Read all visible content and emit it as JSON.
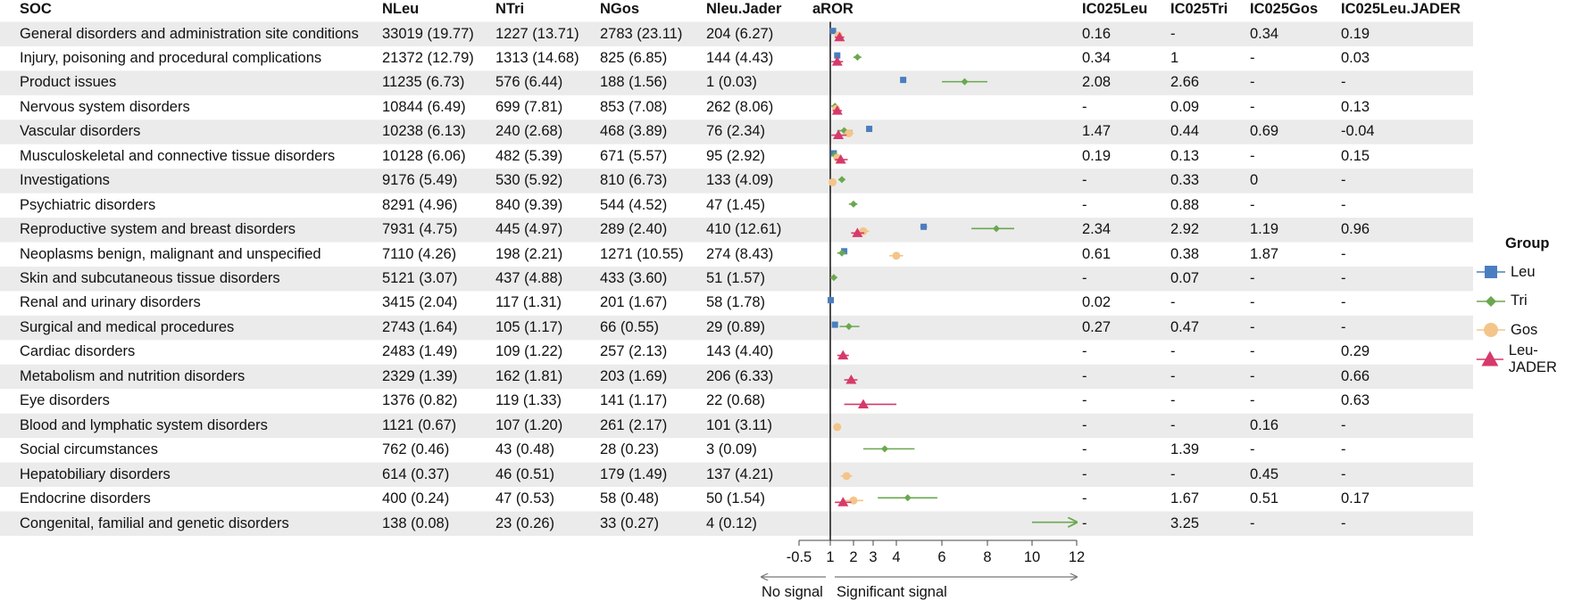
{
  "headers": {
    "soc": "SOC",
    "nleu": "NLeu",
    "ntri": "NTri",
    "ngos": "NGos",
    "njader": "Nleu.Jader",
    "aror": "aROR",
    "ic_leu": "IC025Leu",
    "ic_tri": "IC025Tri",
    "ic_gos": "IC025Gos",
    "ic_jader": "IC025Leu.JADER"
  },
  "rows": [
    {
      "soc": "General disorders and administration site conditions",
      "nleu": "33019 (19.77)",
      "ntri": "1227 (13.71)",
      "ngos": "2783 (23.11)",
      "njader": "204 (6.27)",
      "ic_leu": "0.16",
      "ic_tri": "-",
      "ic_gos": "0.34",
      "ic_jader": "0.19"
    },
    {
      "soc": "Injury, poisoning and procedural complications",
      "nleu": "21372 (12.79)",
      "ntri": "1313 (14.68)",
      "ngos": "825 (6.85)",
      "njader": "144 (4.43)",
      "ic_leu": "0.34",
      "ic_tri": "1",
      "ic_gos": "-",
      "ic_jader": "0.03"
    },
    {
      "soc": "Product issues",
      "nleu": "11235 (6.73)",
      "ntri": "576 (6.44)",
      "ngos": "188 (1.56)",
      "njader": "1 (0.03)",
      "ic_leu": "2.08",
      "ic_tri": "2.66",
      "ic_gos": "-",
      "ic_jader": "-"
    },
    {
      "soc": "Nervous system disorders",
      "nleu": "10844 (6.49)",
      "ntri": "699 (7.81)",
      "ngos": "853 (7.08)",
      "njader": "262 (8.06)",
      "ic_leu": "-",
      "ic_tri": "0.09",
      "ic_gos": "-",
      "ic_jader": "0.13"
    },
    {
      "soc": "Vascular disorders",
      "nleu": "10238 (6.13)",
      "ntri": "240 (2.68)",
      "ngos": "468 (3.89)",
      "njader": "76 (2.34)",
      "ic_leu": "1.47",
      "ic_tri": "0.44",
      "ic_gos": "0.69",
      "ic_jader": "-0.04"
    },
    {
      "soc": "Musculoskeletal and connective tissue disorders",
      "nleu": "10128 (6.06)",
      "ntri": "482 (5.39)",
      "ngos": "671 (5.57)",
      "njader": "95 (2.92)",
      "ic_leu": "0.19",
      "ic_tri": "0.13",
      "ic_gos": "-",
      "ic_jader": "0.15"
    },
    {
      "soc": "Investigations",
      "nleu": "9176 (5.49)",
      "ntri": "530 (5.92)",
      "ngos": "810 (6.73)",
      "njader": "133 (4.09)",
      "ic_leu": "-",
      "ic_tri": "0.33",
      "ic_gos": "0",
      "ic_jader": "-"
    },
    {
      "soc": "Psychiatric disorders",
      "nleu": "8291 (4.96)",
      "ntri": "840 (9.39)",
      "ngos": "544 (4.52)",
      "njader": "47 (1.45)",
      "ic_leu": "-",
      "ic_tri": "0.88",
      "ic_gos": "-",
      "ic_jader": "-"
    },
    {
      "soc": "Reproductive system and breast disorders",
      "nleu": "7931 (4.75)",
      "ntri": "445 (4.97)",
      "ngos": "289 (2.40)",
      "njader": "410 (12.61)",
      "ic_leu": "2.34",
      "ic_tri": "2.92",
      "ic_gos": "1.19",
      "ic_jader": "0.96"
    },
    {
      "soc": "Neoplasms benign, malignant and unspecified",
      "nleu": "7110 (4.26)",
      "ntri": "198 (2.21)",
      "ngos": "1271 (10.55)",
      "njader": "274 (8.43)",
      "ic_leu": "0.61",
      "ic_tri": "0.38",
      "ic_gos": "1.87",
      "ic_jader": "-"
    },
    {
      "soc": "Skin and subcutaneous tissue disorders",
      "nleu": "5121 (3.07)",
      "ntri": "437 (4.88)",
      "ngos": "433 (3.60)",
      "njader": "51 (1.57)",
      "ic_leu": "-",
      "ic_tri": "0.07",
      "ic_gos": "-",
      "ic_jader": "-"
    },
    {
      "soc": "Renal and urinary disorders",
      "nleu": "3415 (2.04)",
      "ntri": "117 (1.31)",
      "ngos": "201 (1.67)",
      "njader": "58 (1.78)",
      "ic_leu": "0.02",
      "ic_tri": "-",
      "ic_gos": "-",
      "ic_jader": "-"
    },
    {
      "soc": "Surgical and medical procedures",
      "nleu": "2743 (1.64)",
      "ntri": "105 (1.17)",
      "ngos": "66 (0.55)",
      "njader": "29 (0.89)",
      "ic_leu": "0.27",
      "ic_tri": "0.47",
      "ic_gos": "-",
      "ic_jader": "-"
    },
    {
      "soc": "Cardiac disorders",
      "nleu": "2483 (1.49)",
      "ntri": "109 (1.22)",
      "ngos": "257 (2.13)",
      "njader": "143 (4.40)",
      "ic_leu": "-",
      "ic_tri": "-",
      "ic_gos": "-",
      "ic_jader": "0.29"
    },
    {
      "soc": "Metabolism and nutrition disorders",
      "nleu": "2329 (1.39)",
      "ntri": "162 (1.81)",
      "ngos": "203 (1.69)",
      "njader": "206 (6.33)",
      "ic_leu": "-",
      "ic_tri": "-",
      "ic_gos": "-",
      "ic_jader": "0.66"
    },
    {
      "soc": "Eye disorders",
      "nleu": "1376 (0.82)",
      "ntri": "119 (1.33)",
      "ngos": "141 (1.17)",
      "njader": "22 (0.68)",
      "ic_leu": "-",
      "ic_tri": "-",
      "ic_gos": "-",
      "ic_jader": "0.63"
    },
    {
      "soc": "Blood and lymphatic system disorders",
      "nleu": "1121 (0.67)",
      "ntri": "107 (1.20)",
      "ngos": "261 (2.17)",
      "njader": "101 (3.11)",
      "ic_leu": "-",
      "ic_tri": "-",
      "ic_gos": "0.16",
      "ic_jader": "-"
    },
    {
      "soc": "Social circumstances",
      "nleu": "762 (0.46)",
      "ntri": "43 (0.48)",
      "ngos": "28 (0.23)",
      "njader": "3 (0.09)",
      "ic_leu": "-",
      "ic_tri": "1.39",
      "ic_gos": "-",
      "ic_jader": "-"
    },
    {
      "soc": "Hepatobiliary disorders",
      "nleu": "614 (0.37)",
      "ntri": "46 (0.51)",
      "ngos": "179 (1.49)",
      "njader": "137 (4.21)",
      "ic_leu": "-",
      "ic_tri": "-",
      "ic_gos": "0.45",
      "ic_jader": "-"
    },
    {
      "soc": "Endocrine disorders",
      "nleu": "400 (0.24)",
      "ntri": "47 (0.53)",
      "ngos": "58 (0.48)",
      "njader": "50 (1.54)",
      "ic_leu": "-",
      "ic_tri": "1.67",
      "ic_gos": "0.51",
      "ic_jader": "0.17"
    },
    {
      "soc": "Congenital, familial and genetic disorders",
      "nleu": "138 (0.08)",
      "ntri": "23 (0.26)",
      "ngos": "33 (0.27)",
      "njader": "4 (0.12)",
      "ic_leu": "-",
      "ic_tri": "3.25",
      "ic_gos": "-",
      "ic_jader": "-"
    }
  ],
  "chart_data": {
    "type": "scatter",
    "subtype": "forest-plot",
    "ylabel": "",
    "xlabel": "",
    "x_ticks": [
      -0.5,
      1,
      2,
      3,
      4,
      6,
      8,
      10,
      12
    ],
    "reference_line": 1,
    "annotations": {
      "left": "No signal",
      "right": "Significant signal"
    },
    "legend": {
      "title": "Group",
      "position": "right"
    },
    "categories": [
      "General disorders and administration site conditions",
      "Injury, poisoning and procedural complications",
      "Product issues",
      "Nervous system disorders",
      "Vascular disorders",
      "Musculoskeletal and connective tissue disorders",
      "Investigations",
      "Psychiatric disorders",
      "Reproductive system and breast disorders",
      "Neoplasms benign, malignant and unspecified",
      "Skin and subcutaneous tissue disorders",
      "Renal and urinary disorders",
      "Surgical and medical procedures",
      "Cardiac disorders",
      "Metabolism and nutrition disorders",
      "Eye disorders",
      "Blood and lymphatic system disorders",
      "Social circumstances",
      "Hepatobiliary disorders",
      "Endocrine disorders",
      "Congenital, familial and genetic disorders"
    ],
    "series": [
      {
        "name": "Leu",
        "shape": "square",
        "color": "#4a7ebf",
        "points": [
          {
            "row": 0,
            "x": 1.12,
            "lo": 1.1,
            "hi": 1.14
          },
          {
            "row": 1,
            "x": 1.3,
            "lo": 1.28,
            "hi": 1.32
          },
          {
            "row": 2,
            "x": 4.3,
            "lo": 4.2,
            "hi": 4.4
          },
          {
            "row": 4,
            "x": 2.8,
            "lo": 2.7,
            "hi": 2.9
          },
          {
            "row": 5,
            "x": 1.15,
            "lo": 1.12,
            "hi": 1.18
          },
          {
            "row": 8,
            "x": 5.2,
            "lo": 5.05,
            "hi": 5.35
          },
          {
            "row": 9,
            "x": 1.6,
            "lo": 1.55,
            "hi": 1.65
          },
          {
            "row": 11,
            "x": 1.02,
            "lo": 0.98,
            "hi": 1.06
          },
          {
            "row": 12,
            "x": 1.2,
            "lo": 1.15,
            "hi": 1.25
          }
        ]
      },
      {
        "name": "Tri",
        "shape": "diamond",
        "color": "#6aa84f",
        "points": [
          {
            "row": 1,
            "x": 2.2,
            "lo": 2.0,
            "hi": 2.4
          },
          {
            "row": 2,
            "x": 7.0,
            "lo": 6.0,
            "hi": 8.0
          },
          {
            "row": 3,
            "x": 1.2,
            "lo": 1.05,
            "hi": 1.35
          },
          {
            "row": 4,
            "x": 1.6,
            "lo": 1.3,
            "hi": 1.95
          },
          {
            "row": 5,
            "x": 1.2,
            "lo": 1.05,
            "hi": 1.35
          },
          {
            "row": 6,
            "x": 1.5,
            "lo": 1.35,
            "hi": 1.65
          },
          {
            "row": 7,
            "x": 2.0,
            "lo": 1.8,
            "hi": 2.2
          },
          {
            "row": 8,
            "x": 8.4,
            "lo": 7.3,
            "hi": 9.2
          },
          {
            "row": 9,
            "x": 1.5,
            "lo": 1.3,
            "hi": 1.7
          },
          {
            "row": 10,
            "x": 1.15,
            "lo": 1.0,
            "hi": 1.3
          },
          {
            "row": 12,
            "x": 1.8,
            "lo": 1.4,
            "hi": 2.3
          },
          {
            "row": 17,
            "x": 3.5,
            "lo": 2.5,
            "hi": 4.8
          },
          {
            "row": 19,
            "x": 4.5,
            "lo": 3.2,
            "hi": 5.8
          },
          {
            "row": 20,
            "x": 11.0,
            "lo": 10.0,
            "hi": 12.0,
            "arrow": true
          }
        ]
      },
      {
        "name": "Gos",
        "shape": "circle",
        "color": "#f3c58a",
        "points": [
          {
            "row": 0,
            "x": 1.35,
            "lo": 1.3,
            "hi": 1.4
          },
          {
            "row": 3,
            "x": 1.25,
            "lo": 1.15,
            "hi": 1.35
          },
          {
            "row": 4,
            "x": 1.8,
            "lo": 1.6,
            "hi": 2.0
          },
          {
            "row": 5,
            "x": 1.3,
            "lo": 1.2,
            "hi": 1.4
          },
          {
            "row": 6,
            "x": 1.1,
            "lo": 1.0,
            "hi": 1.2
          },
          {
            "row": 8,
            "x": 2.5,
            "lo": 2.25,
            "hi": 2.8
          },
          {
            "row": 9,
            "x": 4.0,
            "lo": 3.7,
            "hi": 4.3
          },
          {
            "row": 16,
            "x": 1.3,
            "lo": 1.15,
            "hi": 1.45
          },
          {
            "row": 18,
            "x": 1.7,
            "lo": 1.45,
            "hi": 1.95
          },
          {
            "row": 19,
            "x": 2.0,
            "lo": 1.6,
            "hi": 2.5
          }
        ]
      },
      {
        "name": "Leu-JADER",
        "shape": "triangle",
        "color": "#d63a6a",
        "points": [
          {
            "row": 0,
            "x": 1.4,
            "lo": 1.2,
            "hi": 1.6
          },
          {
            "row": 1,
            "x": 1.3,
            "lo": 1.05,
            "hi": 1.55
          },
          {
            "row": 3,
            "x": 1.3,
            "lo": 1.1,
            "hi": 1.5
          },
          {
            "row": 4,
            "x": 1.35,
            "lo": 1.05,
            "hi": 1.7
          },
          {
            "row": 5,
            "x": 1.45,
            "lo": 1.2,
            "hi": 1.75
          },
          {
            "row": 8,
            "x": 2.2,
            "lo": 1.9,
            "hi": 2.55
          },
          {
            "row": 13,
            "x": 1.55,
            "lo": 1.3,
            "hi": 1.8
          },
          {
            "row": 14,
            "x": 1.9,
            "lo": 1.6,
            "hi": 2.2
          },
          {
            "row": 15,
            "x": 2.5,
            "lo": 1.6,
            "hi": 4.0
          },
          {
            "row": 19,
            "x": 1.55,
            "lo": 1.2,
            "hi": 1.9
          }
        ]
      }
    ]
  }
}
